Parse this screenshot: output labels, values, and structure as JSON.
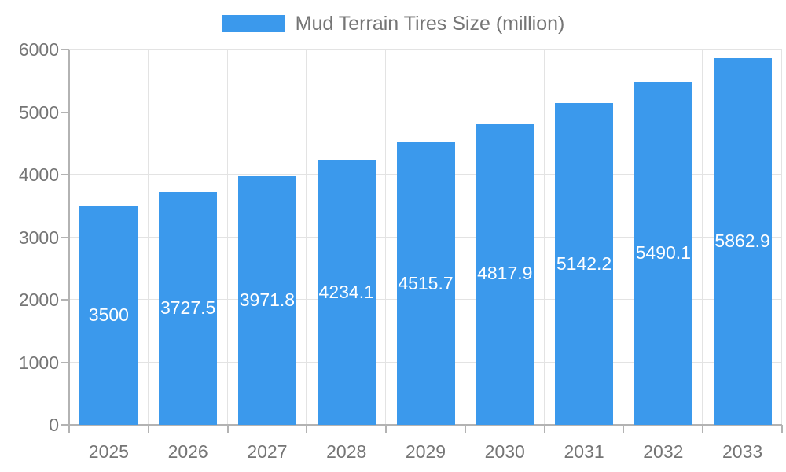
{
  "chart_data": {
    "type": "bar",
    "title": "Mud Terrain Tires Size (million)",
    "categories": [
      "2025",
      "2026",
      "2027",
      "2028",
      "2029",
      "2030",
      "2031",
      "2032",
      "2033"
    ],
    "values": [
      3500,
      3727.5,
      3971.8,
      4234.1,
      4515.7,
      4817.9,
      5142.2,
      5490.1,
      5862.9
    ],
    "value_labels": [
      "3500",
      "3727.5",
      "3971.8",
      "4234.1",
      "4515.7",
      "4817.9",
      "5142.2",
      "5490.1",
      "5862.9"
    ],
    "xlabel": "",
    "ylabel": "",
    "ylim": [
      0,
      6000
    ],
    "yticks": [
      0,
      1000,
      2000,
      3000,
      4000,
      5000,
      6000
    ],
    "grid": true,
    "legend_position": "top-center",
    "bar_color": "#3B99EC",
    "value_label_color": "#ffffff",
    "axis_text_color": "#757575",
    "grid_color": "#e3e3e3",
    "axis_line_color": "#b3b3b3",
    "background": "#ffffff"
  }
}
